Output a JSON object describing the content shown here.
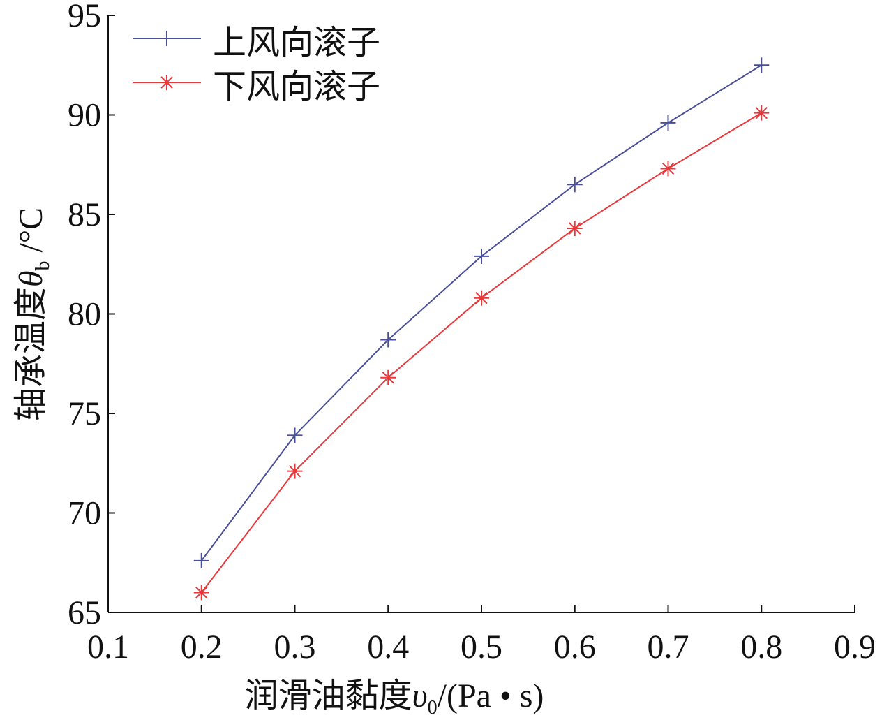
{
  "chart_data": {
    "type": "line",
    "x": [
      0.2,
      0.3,
      0.4,
      0.5,
      0.6,
      0.7,
      0.8
    ],
    "series": [
      {
        "name": "上风向滚子",
        "color": "#4a4f9a",
        "marker": "plus",
        "values": [
          67.6,
          73.9,
          78.7,
          82.9,
          86.5,
          89.6,
          92.5
        ]
      },
      {
        "name": "下风向滚子",
        "color": "#e8383b",
        "marker": "asterisk",
        "values": [
          66.0,
          72.1,
          76.8,
          80.8,
          84.3,
          87.3,
          90.1
        ]
      }
    ],
    "x_label": {
      "main": "润滑油黏度",
      "symbol": "υ",
      "subscript": "0",
      "unit": "/(Pa • s)"
    },
    "y_label": {
      "main": "轴承温度",
      "symbol": "θ",
      "subscript": "b",
      "unit": " /°C"
    },
    "xlim": [
      0.1,
      0.9
    ],
    "xticks": [
      0.1,
      0.2,
      0.3,
      0.4,
      0.5,
      0.6,
      0.7,
      0.8,
      0.9
    ],
    "ylim": [
      65,
      95
    ],
    "yticks": [
      65,
      70,
      75,
      80,
      85,
      90,
      95
    ],
    "legend": "upper-left"
  }
}
